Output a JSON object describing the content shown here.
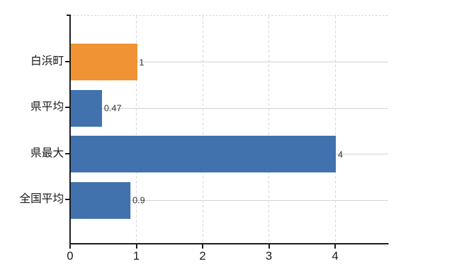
{
  "chart_data": {
    "type": "bar",
    "orientation": "horizontal",
    "title": "",
    "xlabel": "",
    "ylabel": "",
    "categories": [
      "白浜町",
      "県平均",
      "県最大",
      "全国平均"
    ],
    "values": [
      1,
      0.47,
      4,
      0.9
    ],
    "value_labels": [
      "1",
      "0.47",
      "4",
      "0.9"
    ],
    "bar_colors": [
      "#ef9334",
      "#4172ae",
      "#4172ae",
      "#4172ae"
    ],
    "x_ticks": [
      0,
      1,
      2,
      3,
      4
    ],
    "x_tick_labels": [
      "0",
      "1",
      "2",
      "3",
      "4"
    ],
    "xlim": [
      0,
      4.8
    ],
    "grid": true,
    "legend": "none",
    "gridline_horizontal_color": "#cfd4ca",
    "gridline_vertical_color": "#d7d7d7",
    "axis_color": "#1a1a1a",
    "value_label_color": "#333333",
    "background_color": "#ffffff"
  }
}
